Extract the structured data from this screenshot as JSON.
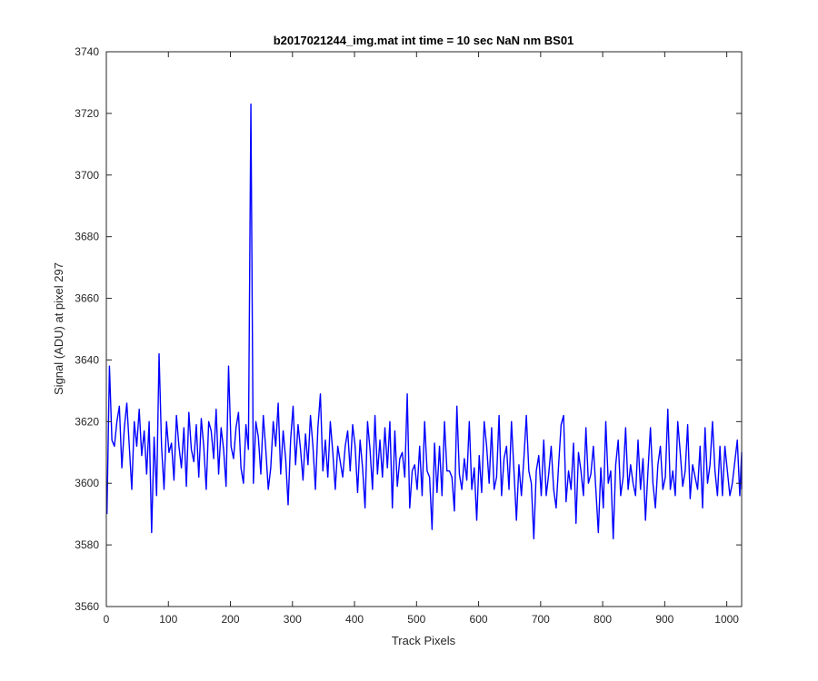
{
  "chart_data": {
    "type": "line",
    "title": "b2017021244_img.mat int time = 10 sec  NaN nm BS01",
    "xlabel": "Track Pixels",
    "ylabel": "Signal (ADU) at pixel 297",
    "xlim": [
      0,
      1024
    ],
    "ylim": [
      3560,
      3740
    ],
    "xticks": [
      0,
      100,
      200,
      300,
      400,
      500,
      600,
      700,
      800,
      900,
      1000
    ],
    "yticks": [
      3560,
      3580,
      3600,
      3620,
      3640,
      3660,
      3680,
      3700,
      3720,
      3740
    ],
    "grid": false,
    "legend": "none",
    "series_color": "#0000ff",
    "series": [
      {
        "x_start": 1,
        "x_step": 4,
        "values": [
          3590,
          3638,
          3614,
          3612,
          3620,
          3625,
          3605,
          3618,
          3626,
          3612,
          3598,
          3620,
          3612,
          3624,
          3609,
          3617,
          3603,
          3620,
          3584,
          3615,
          3596,
          3642,
          3612,
          3598,
          3620,
          3610,
          3613,
          3601,
          3622,
          3612,
          3605,
          3618,
          3599,
          3623,
          3611,
          3607,
          3619,
          3602,
          3621,
          3612,
          3598,
          3620,
          3617,
          3608,
          3624,
          3603,
          3618,
          3611,
          3599,
          3638,
          3612,
          3608,
          3618,
          3623,
          3605,
          3600,
          3619,
          3611,
          3723,
          3600,
          3620,
          3615,
          3603,
          3622,
          3611,
          3598,
          3605,
          3620,
          3612,
          3626,
          3603,
          3617,
          3608,
          3593,
          3614,
          3625,
          3606,
          3619,
          3611,
          3601,
          3616,
          3606,
          3622,
          3612,
          3598,
          3618,
          3629,
          3604,
          3614,
          3602,
          3620,
          3610,
          3598,
          3612,
          3607,
          3602,
          3612,
          3617,
          3604,
          3619,
          3612,
          3597,
          3614,
          3605,
          3592,
          3620,
          3611,
          3598,
          3622,
          3603,
          3614,
          3602,
          3618,
          3605,
          3620,
          3592,
          3617,
          3599,
          3608,
          3610,
          3602,
          3629,
          3592,
          3604,
          3606,
          3598,
          3612,
          3596,
          3620,
          3604,
          3602,
          3585,
          3613,
          3597,
          3612,
          3596,
          3620,
          3604,
          3604,
          3602,
          3591,
          3625,
          3603,
          3598,
          3608,
          3601,
          3620,
          3598,
          3605,
          3588,
          3609,
          3597,
          3620,
          3612,
          3600,
          3618,
          3598,
          3602,
          3622,
          3596,
          3608,
          3612,
          3598,
          3620,
          3604,
          3588,
          3606,
          3596,
          3608,
          3622,
          3604,
          3600,
          3582,
          3604,
          3609,
          3596,
          3614,
          3596,
          3603,
          3612,
          3598,
          3592,
          3606,
          3619,
          3622,
          3594,
          3604,
          3598,
          3613,
          3587,
          3610,
          3604,
          3596,
          3618,
          3600,
          3603,
          3612,
          3598,
          3584,
          3605,
          3592,
          3620,
          3600,
          3604,
          3582,
          3606,
          3614,
          3596,
          3602,
          3618,
          3598,
          3606,
          3600,
          3596,
          3614,
          3598,
          3608,
          3588,
          3604,
          3618,
          3600,
          3592,
          3606,
          3612,
          3598,
          3602,
          3624,
          3598,
          3604,
          3596,
          3620,
          3610,
          3599,
          3604,
          3619,
          3595,
          3606,
          3602,
          3598,
          3612,
          3592,
          3618,
          3600,
          3606,
          3620,
          3604,
          3596,
          3612,
          3596,
          3612,
          3604,
          3596,
          3600,
          3607,
          3614,
          3596,
          3610,
          3598
        ]
      }
    ]
  }
}
